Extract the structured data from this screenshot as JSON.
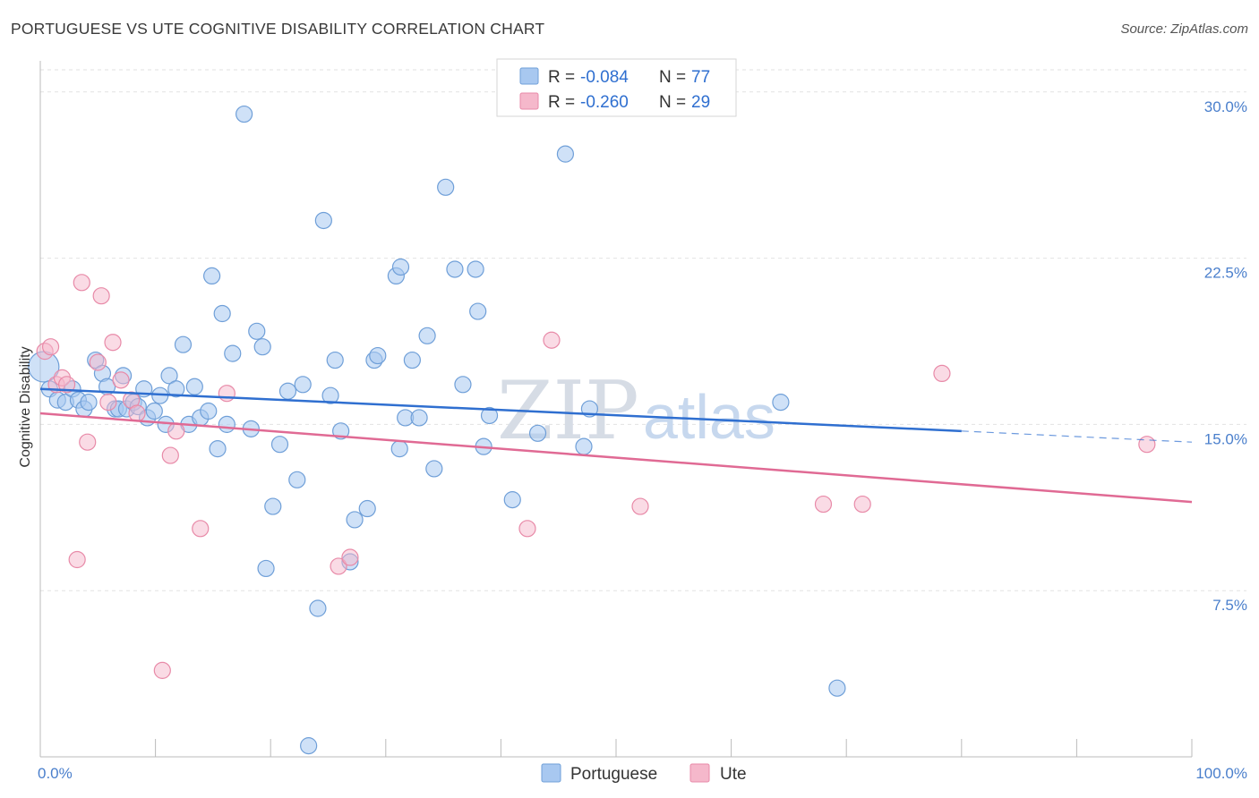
{
  "title": "PORTUGUESE VS UTE COGNITIVE DISABILITY CORRELATION CHART",
  "source": "Source: ZipAtlas.com",
  "colors": {
    "portuguese_fill": "#a8c8f0",
    "portuguese_stroke": "#6f9fd8",
    "portuguese_line": "#2f6fd0",
    "ute_fill": "#f5b8cb",
    "ute_stroke": "#e88aa8",
    "ute_line": "#e06a94",
    "axis_label": "#4a7fcc"
  },
  "legend": {
    "rows": [
      {
        "r_label": "R =",
        "r_value": "-0.084",
        "n_label": "N =",
        "n_value": "77"
      },
      {
        "r_label": "R =",
        "r_value": "-0.260",
        "n_label": "N =",
        "n_value": "29"
      }
    ]
  },
  "bottom_legend": [
    "Portuguese",
    "Ute"
  ],
  "watermark": {
    "zip": "ZIP",
    "atlas": "atlas"
  },
  "chart_data": {
    "type": "scatter",
    "ylabel": "Cognitive Disability",
    "xlim": [
      0,
      100
    ],
    "ylim": [
      0,
      31
    ],
    "x_tick_labels": [
      "0.0%",
      "100.0%"
    ],
    "y_ticks": [
      7.5,
      15.0,
      22.5,
      30.0
    ],
    "y_tick_labels": [
      "7.5%",
      "15.0%",
      "22.5%",
      "30.0%"
    ],
    "grid": true,
    "legend_position": "top-center",
    "series": [
      {
        "name": "Portuguese",
        "points": [
          [
            0.3,
            17.6
          ],
          [
            0.8,
            16.6
          ],
          [
            1.5,
            16.1
          ],
          [
            2.2,
            16.0
          ],
          [
            2.8,
            16.6
          ],
          [
            3.3,
            16.1
          ],
          [
            3.8,
            15.7
          ],
          [
            4.2,
            16.0
          ],
          [
            4.8,
            17.9
          ],
          [
            5.4,
            17.3
          ],
          [
            5.8,
            16.7
          ],
          [
            6.5,
            15.7
          ],
          [
            6.8,
            15.7
          ],
          [
            7.2,
            17.2
          ],
          [
            7.5,
            15.7
          ],
          [
            8.1,
            16.0
          ],
          [
            8.5,
            15.8
          ],
          [
            9.0,
            16.6
          ],
          [
            9.3,
            15.3
          ],
          [
            9.9,
            15.6
          ],
          [
            10.4,
            16.3
          ],
          [
            10.9,
            15.0
          ],
          [
            11.2,
            17.2
          ],
          [
            11.8,
            16.6
          ],
          [
            12.4,
            18.6
          ],
          [
            12.9,
            15.0
          ],
          [
            13.4,
            16.7
          ],
          [
            13.9,
            15.3
          ],
          [
            14.6,
            15.6
          ],
          [
            14.9,
            21.7
          ],
          [
            15.4,
            13.9
          ],
          [
            15.8,
            20.0
          ],
          [
            16.2,
            15.0
          ],
          [
            16.7,
            18.2
          ],
          [
            17.7,
            29.0
          ],
          [
            18.3,
            14.8
          ],
          [
            18.8,
            19.2
          ],
          [
            19.3,
            18.5
          ],
          [
            19.6,
            8.5
          ],
          [
            20.2,
            11.3
          ],
          [
            20.8,
            14.1
          ],
          [
            21.5,
            16.5
          ],
          [
            22.3,
            12.5
          ],
          [
            22.8,
            16.8
          ],
          [
            23.3,
            0.5
          ],
          [
            24.1,
            6.7
          ],
          [
            24.6,
            24.2
          ],
          [
            25.2,
            16.3
          ],
          [
            25.6,
            17.9
          ],
          [
            26.1,
            14.7
          ],
          [
            26.9,
            8.8
          ],
          [
            27.3,
            10.7
          ],
          [
            28.4,
            11.2
          ],
          [
            29.0,
            17.9
          ],
          [
            29.3,
            18.1
          ],
          [
            30.9,
            21.7
          ],
          [
            31.3,
            22.1
          ],
          [
            31.7,
            15.3
          ],
          [
            32.3,
            17.9
          ],
          [
            32.9,
            15.3
          ],
          [
            31.2,
            13.9
          ],
          [
            33.6,
            19.0
          ],
          [
            34.2,
            13.0
          ],
          [
            35.2,
            25.7
          ],
          [
            36.0,
            22.0
          ],
          [
            36.7,
            16.8
          ],
          [
            37.8,
            22.0
          ],
          [
            38.0,
            20.1
          ],
          [
            38.5,
            14.0
          ],
          [
            39.0,
            15.4
          ],
          [
            41.0,
            11.6
          ],
          [
            43.2,
            14.6
          ],
          [
            45.6,
            27.2
          ],
          [
            47.2,
            14.0
          ],
          [
            47.7,
            15.7
          ],
          [
            64.3,
            16.0
          ],
          [
            69.2,
            3.1
          ]
        ]
      },
      {
        "name": "Ute",
        "points": [
          [
            0.4,
            18.3
          ],
          [
            0.9,
            18.5
          ],
          [
            1.4,
            16.8
          ],
          [
            1.9,
            17.1
          ],
          [
            2.3,
            16.8
          ],
          [
            3.2,
            8.9
          ],
          [
            3.6,
            21.4
          ],
          [
            4.1,
            14.2
          ],
          [
            5.0,
            17.8
          ],
          [
            5.3,
            20.8
          ],
          [
            5.9,
            16.0
          ],
          [
            6.3,
            18.7
          ],
          [
            7.0,
            17.0
          ],
          [
            7.9,
            16.1
          ],
          [
            8.4,
            15.5
          ],
          [
            10.6,
            3.9
          ],
          [
            11.3,
            13.6
          ],
          [
            11.8,
            14.7
          ],
          [
            13.9,
            10.3
          ],
          [
            16.2,
            16.4
          ],
          [
            25.9,
            8.6
          ],
          [
            26.9,
            9.0
          ],
          [
            42.3,
            10.3
          ],
          [
            44.4,
            18.8
          ],
          [
            52.1,
            11.3
          ],
          [
            68.0,
            11.4
          ],
          [
            71.4,
            11.4
          ],
          [
            78.3,
            17.3
          ],
          [
            96.1,
            14.1
          ]
        ]
      }
    ],
    "trendlines": [
      {
        "name": "Portuguese",
        "x_start": 0,
        "y_start": 16.6,
        "x_solid_end": 80,
        "y_solid_end": 14.7,
        "x_end": 100,
        "y_end": 14.2
      },
      {
        "name": "Ute",
        "x_start": 0,
        "y_start": 15.5,
        "x_end": 100,
        "y_end": 11.5
      }
    ]
  }
}
